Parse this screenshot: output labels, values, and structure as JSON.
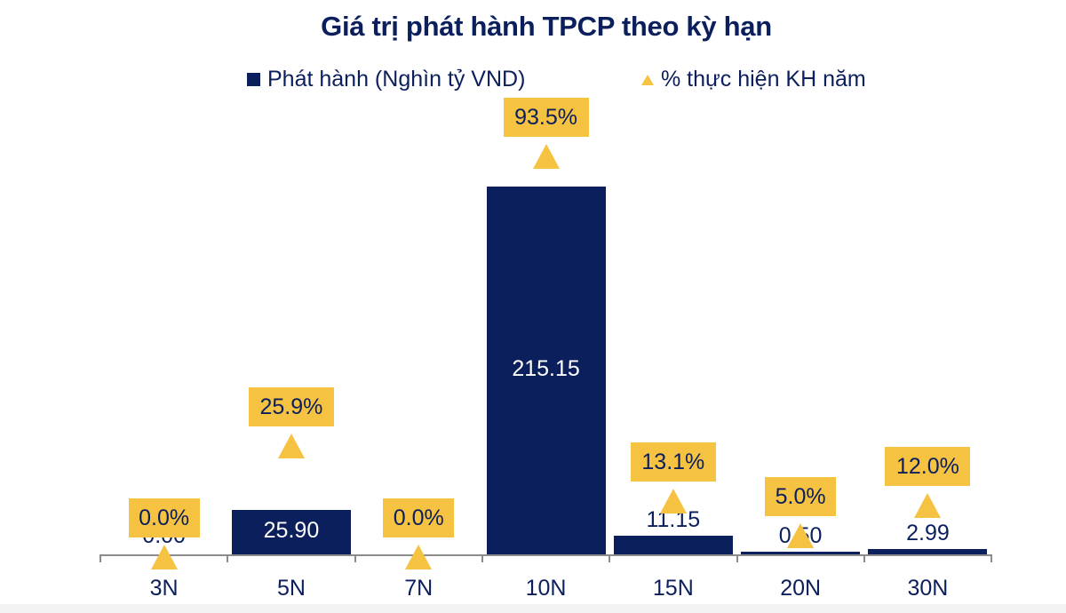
{
  "chart_data": {
    "type": "bar",
    "title": "Giá trị phát hành TPCP theo kỳ hạn",
    "xlabel": "",
    "ylabel": "",
    "categories": [
      "3N",
      "5N",
      "7N",
      "10N",
      "15N",
      "20N",
      "30N"
    ],
    "series": [
      {
        "name": "Phát hành (Nghìn tỷ VND)",
        "type": "bar",
        "color": "#0b1f5c",
        "values": [
          0.0,
          25.9,
          0.0,
          215.15,
          11.15,
          0.5,
          2.99
        ],
        "labels": [
          "0.00",
          "25.90",
          "",
          "215.15",
          "11.15",
          "0.50",
          "2.99"
        ]
      },
      {
        "name": "% thực hiện KH năm",
        "type": "scatter",
        "marker": "triangle",
        "color": "#f5c242",
        "values": [
          0.0,
          25.9,
          0.0,
          93.5,
          13.1,
          5.0,
          12.0
        ],
        "labels": [
          "0.0%",
          "25.9%",
          "0.0%",
          "93.5%",
          "13.1%",
          "5.0%",
          "12.0%"
        ]
      }
    ],
    "legend_position": "top",
    "grid": false
  },
  "title": "Giá trị phát hành TPCP theo kỳ hạn",
  "legend": {
    "bar_label": "Phát hành (Nghìn tỷ VND)",
    "marker_label": "% thực hiện KH năm"
  },
  "colors": {
    "bar": "#0b1f5c",
    "marker": "#f5c242",
    "axis": "#8c8c8c"
  }
}
